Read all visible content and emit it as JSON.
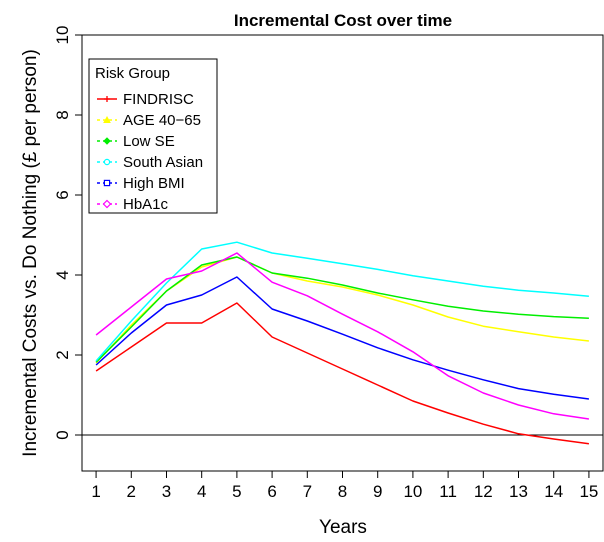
{
  "chart_data": {
    "type": "line",
    "title": "Incremental Cost over time",
    "xlabel": "Years",
    "ylabel": "Incremental Costs vs. Do Nothing (£ per person)",
    "x": [
      1,
      2,
      3,
      4,
      5,
      6,
      7,
      8,
      9,
      10,
      11,
      12,
      13,
      14,
      15
    ],
    "xlim": [
      0.6,
      15.4
    ],
    "ylim": [
      -0.9,
      10
    ],
    "y_ticks": [
      0,
      2,
      4,
      6,
      8,
      10
    ],
    "reference_line": 0,
    "grid": false,
    "legend": {
      "title": "Risk Group",
      "position": "top-left"
    },
    "series": [
      {
        "name": "FINDRISC",
        "color": "#ff0000",
        "marker": "plus",
        "values": [
          1.6,
          2.2,
          2.8,
          2.8,
          3.3,
          2.45,
          2.05,
          1.65,
          1.25,
          0.85,
          0.55,
          0.27,
          0.03,
          -0.1,
          -0.22
        ]
      },
      {
        "name": "AGE 40−65",
        "color": "#ffff00",
        "marker": "triangle",
        "values": [
          1.8,
          2.75,
          3.6,
          4.2,
          4.45,
          4.05,
          3.85,
          3.7,
          3.5,
          3.25,
          2.95,
          2.72,
          2.58,
          2.45,
          2.35
        ]
      },
      {
        "name": "Low SE",
        "color": "#00ee00",
        "marker": "diamond",
        "values": [
          1.82,
          2.7,
          3.6,
          4.25,
          4.45,
          4.05,
          3.92,
          3.75,
          3.55,
          3.38,
          3.22,
          3.1,
          3.02,
          2.96,
          2.92
        ]
      },
      {
        "name": "South Asian",
        "color": "#00ffff",
        "marker": "circle",
        "values": [
          1.85,
          2.85,
          3.8,
          4.65,
          4.82,
          4.55,
          4.42,
          4.28,
          4.14,
          3.98,
          3.85,
          3.72,
          3.62,
          3.55,
          3.47
        ]
      },
      {
        "name": "High BMI",
        "color": "#0000ff",
        "marker": "square",
        "values": [
          1.75,
          2.55,
          3.25,
          3.5,
          3.95,
          3.15,
          2.85,
          2.52,
          2.18,
          1.88,
          1.62,
          1.38,
          1.16,
          1.02,
          0.9
        ]
      },
      {
        "name": "HbA1c",
        "color": "#ff00ff",
        "marker": "diamond-open",
        "values": [
          2.5,
          3.2,
          3.9,
          4.1,
          4.55,
          3.82,
          3.48,
          3.02,
          2.58,
          2.08,
          1.48,
          1.05,
          0.75,
          0.53,
          0.4
        ]
      }
    ]
  }
}
